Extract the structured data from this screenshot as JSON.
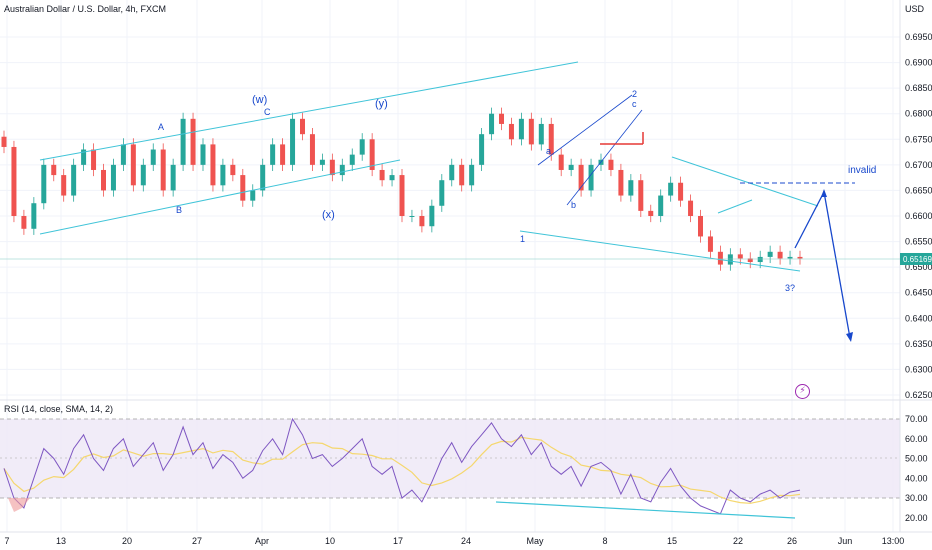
{
  "header": {
    "symbol_title": "Australian Dollar / U.S. Dollar, 4h, FXCM",
    "currency": "USD"
  },
  "rsi_header": "RSI (14, close, SMA, 14, 2)",
  "price_marker": "0.65169",
  "icons": {
    "alert": "lightning-bolt-icon"
  },
  "colors": {
    "bull": "#26a69a",
    "bear": "#ef5350",
    "channel": "#40c4d8",
    "wave_label": "#1848cc",
    "rsi_line": "#7e57c2",
    "rsi_sma": "#f5d76e",
    "rsi_band": "#ede7f6",
    "price_badge": "#26a69a"
  },
  "chart_data": {
    "type": "candlestick",
    "y_ticks": [
      "0.69500",
      "0.69000",
      "0.68500",
      "0.68000",
      "0.67500",
      "0.67000",
      "0.66500",
      "0.66000",
      "0.65500",
      "0.65000",
      "0.64500",
      "0.64000",
      "0.63500",
      "0.63000",
      "0.62500"
    ],
    "x_ticks": [
      "7",
      "13",
      "20",
      "27",
      "Apr",
      "10",
      "17",
      "24",
      "May",
      "8",
      "15",
      "22",
      "26",
      "Jun",
      "13:00"
    ],
    "ylim": [
      0.622,
      0.698
    ],
    "series": [
      {
        "name": "price",
        "x": [
          0,
          1,
          2,
          3,
          4,
          5,
          6,
          7,
          8,
          9,
          10,
          11,
          12,
          13,
          14,
          15,
          16,
          17,
          18,
          19,
          20,
          21,
          22,
          23,
          24,
          25,
          26,
          27,
          28,
          29,
          30,
          31,
          32,
          33,
          34,
          35,
          36,
          37,
          38,
          39,
          40,
          41,
          42,
          43,
          44,
          45,
          46,
          47,
          48,
          49,
          50,
          51,
          52,
          53,
          54,
          55,
          56,
          57,
          58,
          59,
          60,
          61,
          62,
          63,
          64,
          65,
          66,
          67,
          68,
          69,
          70,
          71,
          72,
          73,
          74,
          75,
          76,
          77,
          78,
          79,
          80
        ],
        "close": [
          0.6735,
          0.66,
          0.6575,
          0.6625,
          0.67,
          0.668,
          0.664,
          0.67,
          0.673,
          0.669,
          0.665,
          0.67,
          0.674,
          0.666,
          0.67,
          0.673,
          0.665,
          0.67,
          0.679,
          0.67,
          0.674,
          0.666,
          0.67,
          0.668,
          0.663,
          0.665,
          0.67,
          0.674,
          0.67,
          0.679,
          0.676,
          0.67,
          0.671,
          0.668,
          0.67,
          0.672,
          0.675,
          0.669,
          0.667,
          0.668,
          0.66,
          0.66,
          0.658,
          0.662,
          0.667,
          0.67,
          0.666,
          0.67,
          0.676,
          0.68,
          0.678,
          0.675,
          0.679,
          0.674,
          0.678,
          0.672,
          0.669,
          0.67,
          0.665,
          0.67,
          0.671,
          0.669,
          0.664,
          0.667,
          0.661,
          0.66,
          0.664,
          0.6665,
          0.663,
          0.66,
          0.656,
          0.653,
          0.6505,
          0.6525,
          0.6517,
          0.651,
          0.652,
          0.653,
          0.6517,
          0.652,
          0.6517
        ]
      }
    ],
    "rsi": {
      "y_ticks": [
        "70.00",
        "60.00",
        "50.00",
        "40.00",
        "30.00",
        "20.00"
      ],
      "levels": [
        70,
        50,
        30
      ],
      "values": [
        45,
        30,
        25,
        40,
        55,
        50,
        42,
        55,
        62,
        50,
        44,
        55,
        60,
        46,
        52,
        58,
        44,
        52,
        66,
        52,
        58,
        45,
        52,
        48,
        40,
        44,
        54,
        60,
        52,
        70,
        62,
        50,
        52,
        46,
        50,
        55,
        60,
        46,
        42,
        46,
        30,
        34,
        28,
        38,
        50,
        58,
        48,
        56,
        62,
        68,
        60,
        56,
        62,
        52,
        58,
        46,
        42,
        46,
        36,
        46,
        48,
        44,
        32,
        42,
        30,
        28,
        38,
        45,
        36,
        30,
        26,
        24,
        22,
        34,
        30,
        28,
        32,
        34,
        30,
        33,
        34
      ]
    },
    "annotations": [
      "(w)",
      "(x)",
      "(y)",
      "A",
      "B",
      "C",
      "a",
      "b",
      "c",
      "1",
      "2",
      "3?",
      "invalid"
    ]
  }
}
